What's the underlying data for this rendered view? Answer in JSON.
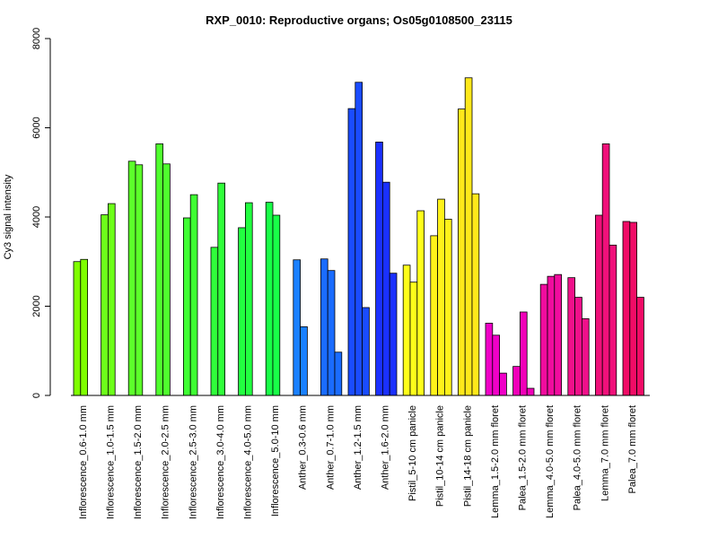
{
  "chart_data": {
    "type": "bar",
    "title": "RXP_0010: Reproductive organs; Os05g0108500_23115",
    "xlabel": "",
    "ylabel": "Cy3 signal intensity",
    "ylim": [
      0,
      8000
    ],
    "yticks": [
      0,
      2000,
      4000,
      6000,
      8000
    ],
    "grid": false,
    "legend": "none",
    "groups": [
      {
        "label": "Inflorescence_0.6-1.0 mm",
        "color": "#7FFF00",
        "values": [
          3000,
          3050
        ]
      },
      {
        "label": "Inflorescence_1.0-1.5 mm",
        "color": "#6DFF1A",
        "values": [
          4050,
          4300
        ]
      },
      {
        "label": "Inflorescence_1.5-2.0 mm",
        "color": "#5CFF2A",
        "values": [
          5250,
          5170
        ]
      },
      {
        "label": "Inflorescence_2.0-2.5 mm",
        "color": "#4FFF2E",
        "values": [
          5640,
          5190
        ]
      },
      {
        "label": "Inflorescence_2.5-3.0 mm",
        "color": "#3FFF33",
        "values": [
          3980,
          4500
        ]
      },
      {
        "label": "Inflorescence_3.0-4.0 mm",
        "color": "#30FF3A",
        "values": [
          3320,
          4760
        ]
      },
      {
        "label": "Inflorescence_4.0-5.0 mm",
        "color": "#22FF40",
        "values": [
          3760,
          4320
        ]
      },
      {
        "label": "Inflorescence_5.0-10 mm",
        "color": "#18FF48",
        "values": [
          4330,
          4040
        ]
      },
      {
        "label": "Anther_0.3-0.6 mm",
        "color": "#1A80FF",
        "values": [
          3040,
          1540
        ]
      },
      {
        "label": "Anther_0.7-1.0 mm",
        "color": "#1A6CFF",
        "values": [
          3060,
          2800,
          970
        ]
      },
      {
        "label": "Anther_1.2-1.5 mm",
        "color": "#1A4CFF",
        "values": [
          6430,
          7020,
          1970
        ]
      },
      {
        "label": "Anther_1.6-2.0 mm",
        "color": "#1A30FF",
        "values": [
          5680,
          4780,
          2740
        ]
      },
      {
        "label": "Pistil_5-10 cm panicle",
        "color": "#FFFF1A",
        "values": [
          2920,
          2540,
          4140
        ]
      },
      {
        "label": "Pistil_10-14 cm panicle",
        "color": "#FFF21A",
        "values": [
          3580,
          4400,
          3950
        ]
      },
      {
        "label": "Pistil_14-18 cm panicle",
        "color": "#FFE81A",
        "values": [
          6420,
          7120,
          4520
        ]
      },
      {
        "label": "Lemma_1.5-2.0 mm floret",
        "color": "#F000C8",
        "values": [
          1620,
          1350,
          500
        ]
      },
      {
        "label": "Palea_1.5-2.0 mm floret",
        "color": "#F000B8",
        "values": [
          650,
          1870,
          160
        ]
      },
      {
        "label": "Lemma_4.0-5.0 mm floret",
        "color": "#F00C9E",
        "values": [
          2490,
          2670,
          2710
        ]
      },
      {
        "label": "Palea_4.0-5.0 mm floret",
        "color": "#F0108A",
        "values": [
          2640,
          2200,
          1720
        ]
      },
      {
        "label": "Lemma_7.0 mm floret",
        "color": "#F0107A",
        "values": [
          4040,
          5640,
          3370
        ]
      },
      {
        "label": "Palea_7.0 mm floret",
        "color": "#F00C66",
        "values": [
          3900,
          3880,
          2200
        ]
      }
    ]
  }
}
